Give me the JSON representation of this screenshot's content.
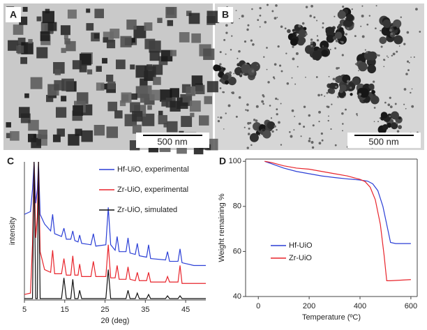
{
  "panels": [
    {
      "label": "A",
      "scale_bar": "500 nm"
    },
    {
      "label": "B",
      "scale_bar": "500 nm"
    }
  ],
  "chart_data": [
    {
      "type": "line",
      "label": "C",
      "xlabel": "2θ (deg)",
      "ylabel": "intensity",
      "xlim": [
        5,
        50
      ],
      "xticks": [
        5,
        15,
        25,
        35,
        45
      ],
      "ylim": [
        0,
        100
      ],
      "legend": "upper right",
      "x": [
        5,
        6.5,
        7.0,
        7.4,
        7.8,
        8.2,
        8.5,
        8.9,
        10,
        11.5,
        12.0,
        12.5,
        14.2,
        14.8,
        15.4,
        16.5,
        17.0,
        17.5,
        18.3,
        18.7,
        19.2,
        21.5,
        22.1,
        22.7,
        25.2,
        25.8,
        26.4,
        27.5,
        28.0,
        28.5,
        30.2,
        30.7,
        31.2,
        32.5,
        33.0,
        33.5,
        35.3,
        35.8,
        36.3,
        40.0,
        40.5,
        41.0,
        43.1,
        43.6,
        44.1,
        47,
        50
      ],
      "series": [
        {
          "name": "Hf-UiO, experimental",
          "color": "#2b3fd6",
          "values": [
            62,
            64,
            80,
            100,
            70,
            80,
            100,
            62,
            55,
            50,
            62,
            48,
            46,
            52,
            44,
            44,
            50,
            43,
            42,
            47,
            41,
            40,
            48,
            39,
            40,
            67,
            40,
            36,
            46,
            35,
            35,
            45,
            34,
            33,
            41,
            32,
            31,
            40,
            30,
            29,
            35,
            28,
            28,
            37,
            27,
            25,
            25
          ]
        },
        {
          "name": "Zr-UiO, experimental",
          "color": "#e8242b",
          "values": [
            4,
            5,
            40,
            100,
            45,
            60,
            100,
            35,
            22,
            20,
            36,
            19,
            19,
            30,
            18,
            18,
            32,
            18,
            18,
            26,
            17,
            17,
            28,
            17,
            17,
            40,
            16,
            16,
            25,
            15,
            15,
            24,
            15,
            14,
            20,
            14,
            14,
            20,
            13,
            13,
            17,
            13,
            13,
            25,
            12,
            12,
            12
          ]
        },
        {
          "name": "Zr-UiO, simulated",
          "color": "#111111",
          "values": [
            1,
            1,
            1,
            100,
            1,
            1,
            100,
            1,
            1,
            1,
            1,
            1,
            1,
            16,
            1,
            1,
            15,
            1,
            1,
            7,
            1,
            1,
            1,
            1,
            1,
            22,
            1,
            1,
            1,
            1,
            1,
            7,
            1,
            1,
            5,
            1,
            1,
            4,
            1,
            1,
            3,
            1,
            1,
            3,
            1,
            1,
            1
          ]
        }
      ]
    },
    {
      "type": "line",
      "label": "D",
      "xlabel": "Temperature (ºC)",
      "ylabel": "Weight remaining %",
      "xlim": [
        -50,
        625
      ],
      "xticks": [
        0,
        200,
        400,
        600
      ],
      "ylim": [
        40,
        101
      ],
      "yticks": [
        40,
        60,
        80,
        100
      ],
      "legend": "center",
      "series": [
        {
          "name": "Hf-UiO",
          "color": "#2b3fd6",
          "x": [
            25,
            50,
            100,
            150,
            200,
            250,
            300,
            350,
            400,
            430,
            450,
            470,
            490,
            505,
            520,
            540,
            600
          ],
          "values": [
            100,
            99,
            97,
            95.5,
            94.5,
            93.5,
            92.8,
            92.2,
            91.7,
            91.2,
            90,
            87,
            80,
            72,
            64,
            63.5,
            63.5
          ]
        },
        {
          "name": "Zr-UiO",
          "color": "#e8242b",
          "x": [
            25,
            50,
            100,
            150,
            200,
            250,
            300,
            350,
            400,
            420,
            440,
            460,
            480,
            495,
            505,
            520,
            600
          ],
          "values": [
            100,
            99.5,
            98,
            97,
            96.5,
            95.5,
            94.5,
            93.5,
            92,
            91,
            88.5,
            83,
            72,
            58,
            47,
            47,
            47.5
          ]
        }
      ]
    }
  ]
}
